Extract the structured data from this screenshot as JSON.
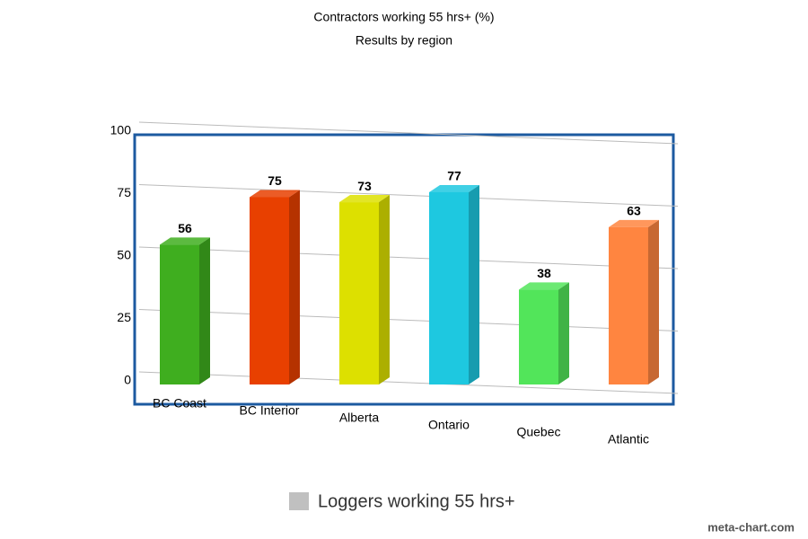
{
  "chart_data": {
    "type": "bar3d",
    "title": "Contractors working 55 hrs+ (%)",
    "subtitle": "Results by region",
    "categories": [
      "BC Coast",
      "BC Interior",
      "Alberta",
      "Ontario",
      "Quebec",
      "Atlantic"
    ],
    "series": [
      {
        "name": "Loggers working 55 hrs+",
        "color": "#c0c0c0",
        "values": [
          56,
          75,
          73,
          77,
          38,
          63
        ],
        "bar_colors": [
          "#3fae1f",
          "#e84000",
          "#dde000",
          "#1ec8e0",
          "#52e55a",
          "#ff8540"
        ]
      }
    ],
    "ylim": [
      0,
      100
    ],
    "yticks": [
      0,
      25,
      50,
      75,
      100
    ],
    "grid": true,
    "legend": "bottom",
    "watermark": "meta-chart.com"
  }
}
